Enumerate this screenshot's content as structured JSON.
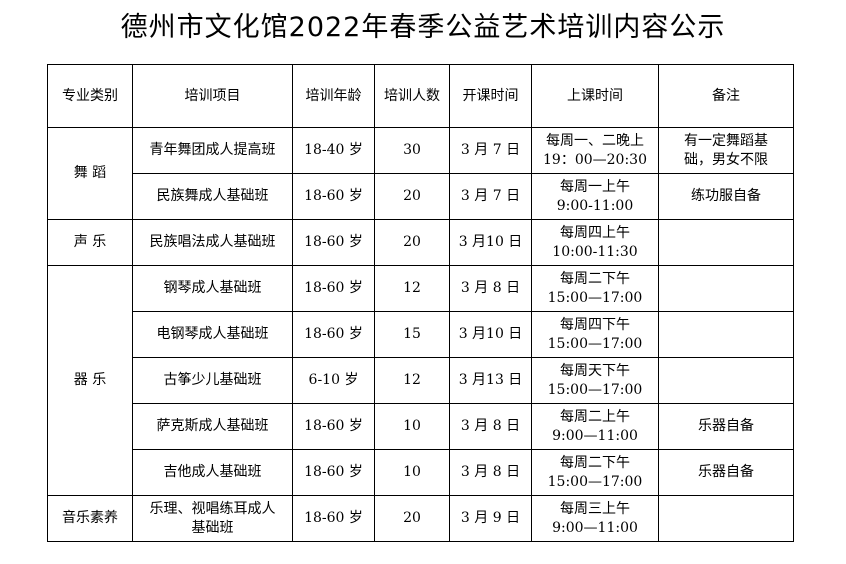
{
  "title": "德州市文化馆2022年春季公益艺术培训内容公示",
  "headers": [
    "专业类别",
    "培训项目",
    "培训年龄",
    "培训人数",
    "开课时间",
    "上课时间",
    "备注"
  ],
  "groups": [
    {
      "category": "舞 蹈",
      "rows": [
        {
          "project": "青年舞团成人提高班",
          "age": "18-40 岁",
          "count": "30",
          "start": "3 月 7 日",
          "time_line1": "每周一、二晚上",
          "time_line2": "19：00—20:30",
          "note_line1": "有一定舞蹈基",
          "note_line2": "础，男女不限"
        },
        {
          "project": "民族舞成人基础班",
          "age": "18-60 岁",
          "count": "20",
          "start": "3 月 7 日",
          "time_line1": "每周一上午",
          "time_line2": "9:00-11:00",
          "note_line1": "练功服自备",
          "note_line2": ""
        }
      ]
    },
    {
      "category": "声 乐",
      "rows": [
        {
          "project": "民族唱法成人基础班",
          "age": "18-60 岁",
          "count": "20",
          "start": "3 月10 日",
          "time_line1": "每周四上午",
          "time_line2": "10:00-11:30",
          "note_line1": "",
          "note_line2": ""
        }
      ]
    },
    {
      "category": "器 乐",
      "rows": [
        {
          "project": "钢琴成人基础班",
          "age": "18-60 岁",
          "count": "12",
          "start": "3 月 8 日",
          "time_line1": "每周二下午",
          "time_line2": "15:00—17:00",
          "note_line1": "",
          "note_line2": ""
        },
        {
          "project": "电钢琴成人基础班",
          "age": "18-60 岁",
          "count": "15",
          "start": "3 月10 日",
          "time_line1": "每周四下午",
          "time_line2": "15:00—17:00",
          "note_line1": "",
          "note_line2": ""
        },
        {
          "project": "古筝少儿基础班",
          "age": "6-10 岁",
          "count": "12",
          "start": "3 月13 日",
          "time_line1": "每周天下午",
          "time_line2": "15:00—17:00",
          "note_line1": "",
          "note_line2": ""
        },
        {
          "project": "萨克斯成人基础班",
          "age": "18-60 岁",
          "count": "10",
          "start": "3 月 8 日",
          "time_line1": "每周二上午",
          "time_line2": "9:00—11:00",
          "note_line1": "乐器自备",
          "note_line2": ""
        },
        {
          "project": "吉他成人基础班",
          "age": "18-60 岁",
          "count": "10",
          "start": "3 月 8 日",
          "time_line1": "每周二下午",
          "time_line2": "15:00—17:00",
          "note_line1": "乐器自备",
          "note_line2": ""
        }
      ]
    },
    {
      "category": "音乐素养",
      "rows": [
        {
          "project": "乐理、视唱练耳成人基础班",
          "project_line1": "乐理、视唱练耳成人",
          "project_line2": "基础班",
          "age": "18-60 岁",
          "count": "20",
          "start": "3 月 9 日",
          "time_line1": "每周三上午",
          "time_line2": "9:00—11:00",
          "note_line1": "",
          "note_line2": ""
        }
      ]
    }
  ]
}
